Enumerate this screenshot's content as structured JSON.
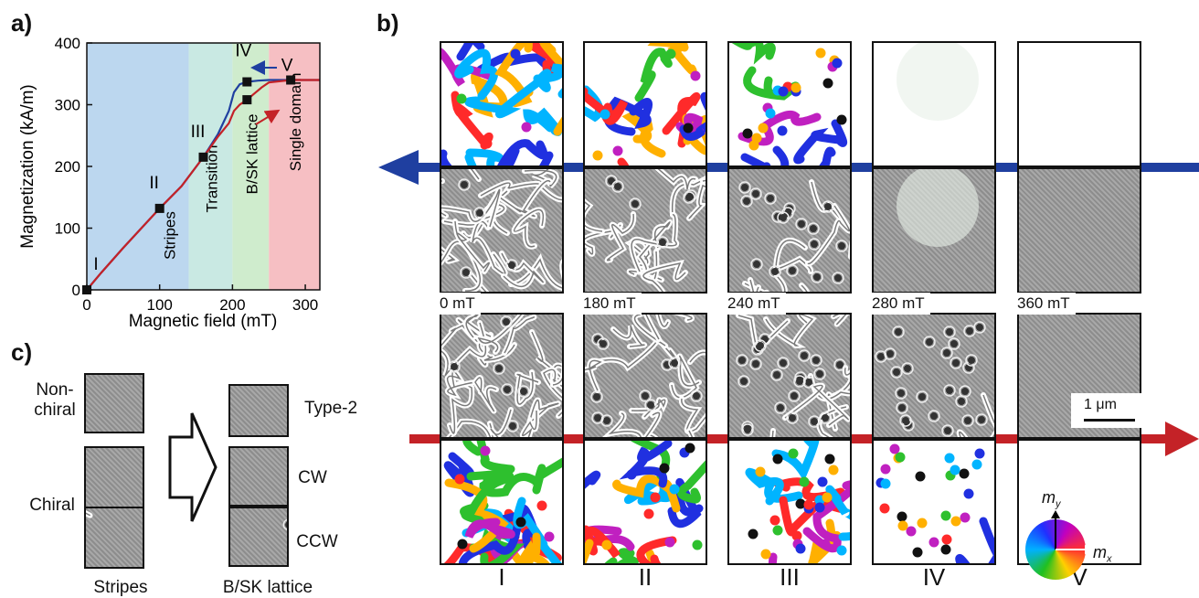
{
  "panels": {
    "a": "a)",
    "b": "b)",
    "c": "c)"
  },
  "chart_data": {
    "type": "line",
    "xlabel": "Magnetic field (mT)",
    "ylabel": "Magnetization (kA/m)",
    "xlim": [
      0,
      320
    ],
    "ylim": [
      0,
      400
    ],
    "xticks": [
      0,
      100,
      200,
      300
    ],
    "yticks": [
      0,
      100,
      200,
      300,
      400
    ],
    "regions": [
      {
        "label": "Stripes",
        "from": 0,
        "to": 140,
        "color": "#bcd7ef"
      },
      {
        "label": "Transition",
        "from": 140,
        "to": 200,
        "color": "#c9e9e3"
      },
      {
        "label": "B/SK lattice",
        "from": 200,
        "to": 250,
        "color": "#cfeccd"
      },
      {
        "label": "Single domain",
        "from": 250,
        "to": 320,
        "color": "#f6bfc3"
      }
    ],
    "series": [
      {
        "color": "#1f3fa0",
        "x": [
          0,
          20,
          50,
          100,
          130,
          160,
          180,
          195,
          202,
          210,
          220,
          235,
          250,
          280,
          320
        ],
        "y": [
          0,
          28,
          68,
          132,
          168,
          215,
          252,
          290,
          320,
          333,
          337,
          339,
          340,
          340,
          340
        ]
      },
      {
        "color": "#c42227",
        "x": [
          0,
          20,
          50,
          100,
          130,
          160,
          180,
          195,
          202,
          210,
          220,
          230,
          240,
          250,
          280,
          320
        ],
        "y": [
          0,
          28,
          68,
          132,
          168,
          215,
          248,
          270,
          290,
          300,
          308,
          318,
          328,
          336,
          340,
          340
        ]
      }
    ],
    "points": [
      {
        "label": "I",
        "x": 0,
        "y": 0
      },
      {
        "label": "II",
        "x": 100,
        "y": 132
      },
      {
        "label": "III",
        "x": 160,
        "y": 215
      },
      {
        "label": "IV",
        "x": 220,
        "y": 337
      },
      {
        "label": "",
        "x": 220,
        "y": 308
      },
      {
        "label": "V",
        "x": 280,
        "y": 340
      }
    ]
  },
  "fields": [
    "0 mT",
    "180 mT",
    "240 mT",
    "280 mT",
    "360 mT"
  ],
  "states": [
    "I",
    "II",
    "III",
    "IV",
    "V"
  ],
  "scalebar": "1 μm",
  "colorwheel": {
    "my": "m",
    "my_sub": "y",
    "mx": "m",
    "mx_sub": "x"
  },
  "panel_c": {
    "nonchiral": "Non-\nchiral",
    "chiral": "Chiral",
    "type2": "Type-2",
    "cw": "CW",
    "ccw": "CCW",
    "stripes": "Stripes",
    "lattice": "B/SK lattice"
  },
  "colors": {
    "decreasing": "#1f3fa0",
    "increasing": "#c42227"
  }
}
